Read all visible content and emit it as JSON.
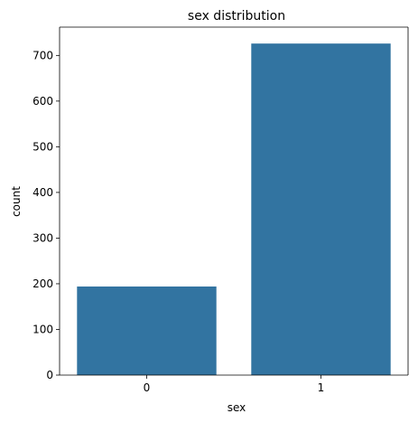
{
  "chart_data": {
    "type": "bar",
    "title": "sex distribution",
    "xlabel": "sex",
    "ylabel": "count",
    "categories": [
      "0",
      "1"
    ],
    "values": [
      194,
      726
    ],
    "ylim": [
      0,
      762
    ],
    "yticks": [
      0,
      100,
      200,
      300,
      400,
      500,
      600,
      700
    ],
    "grid": false,
    "bar_color": "#3274a1"
  }
}
